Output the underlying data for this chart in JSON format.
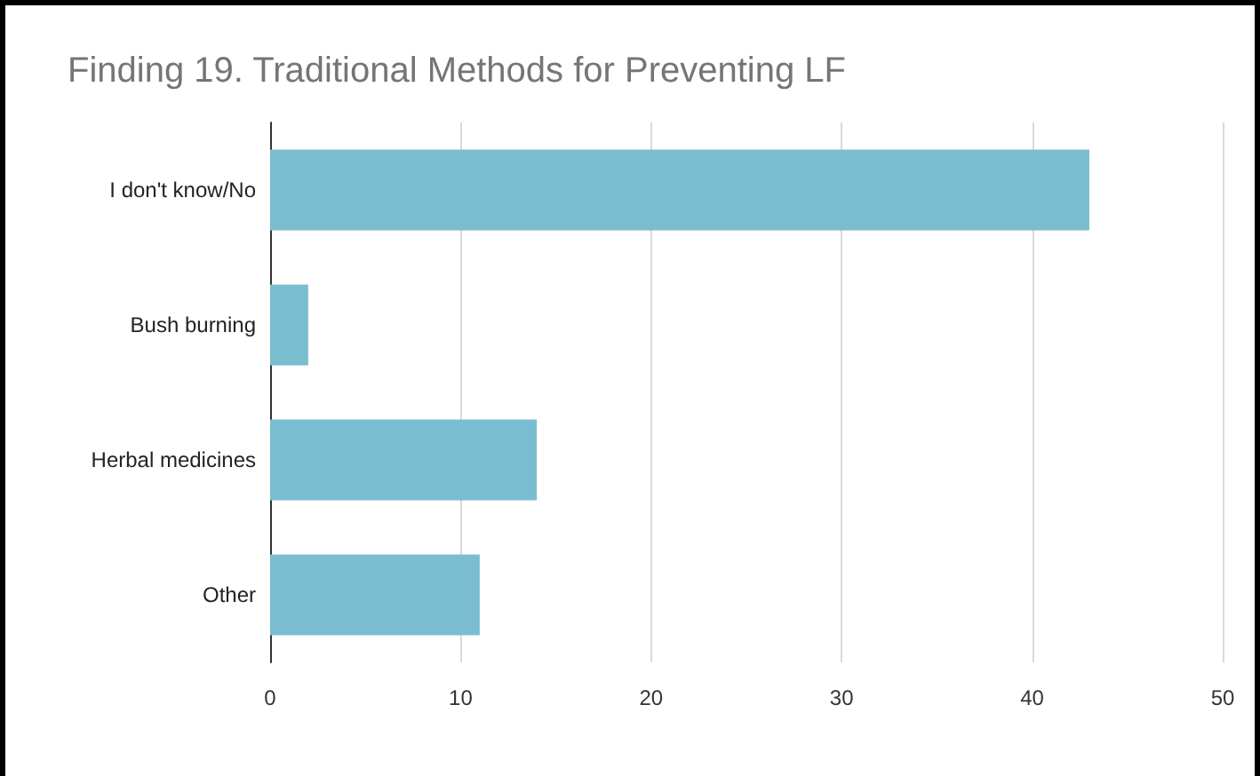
{
  "chart_data": {
    "type": "bar",
    "orientation": "horizontal",
    "title": "Finding 19. Traditional Methods for Preventing LF",
    "categories": [
      "I don't know/No",
      "Bush burning",
      "Herbal medicines",
      "Other"
    ],
    "values": [
      43,
      2,
      14,
      11
    ],
    "color": "#7bbdd0",
    "xlim": [
      0,
      50
    ],
    "xticks": [
      0,
      10,
      20,
      30,
      40,
      50
    ],
    "grid": "x"
  }
}
